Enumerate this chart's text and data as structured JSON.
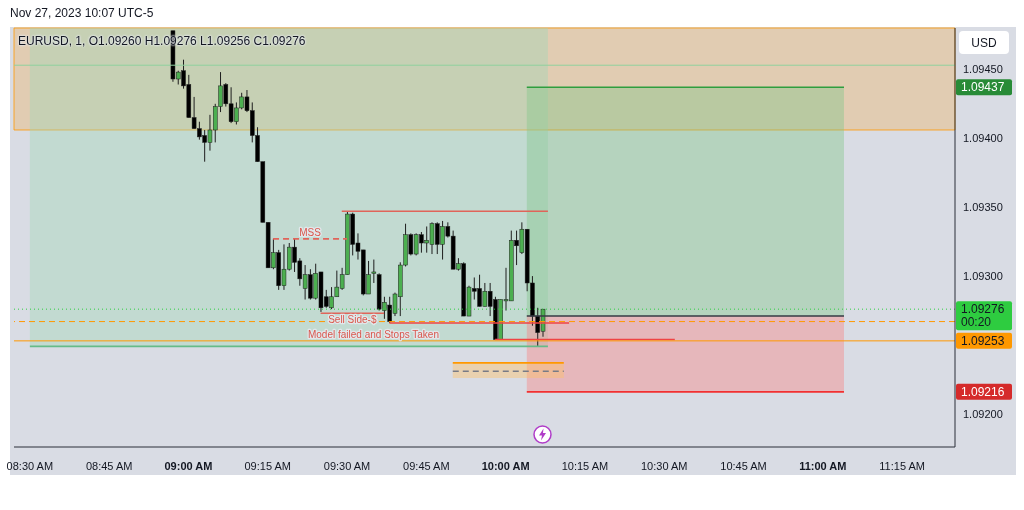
{
  "chart_data": {
    "type": "candlestick",
    "title": "EURUSD, 1, O1.09260 H1.09276 L1.09256 C1.09276",
    "ylabel": "USD",
    "x": [
      "2023-11-27T08:57",
      "2023-11-27T08:58",
      "2023-11-27T08:59",
      "2023-11-27T09:00",
      "2023-11-27T09:01",
      "2023-11-27T09:02",
      "2023-11-27T09:03",
      "2023-11-27T09:04",
      "2023-11-27T09:05",
      "2023-11-27T09:06",
      "2023-11-27T09:07",
      "2023-11-27T09:08",
      "2023-11-27T09:09",
      "2023-11-27T09:10",
      "2023-11-27T09:11",
      "2023-11-27T09:12",
      "2023-11-27T09:13",
      "2023-11-27T09:14",
      "2023-11-27T09:15",
      "2023-11-27T09:16",
      "2023-11-27T09:17",
      "2023-11-27T09:18",
      "2023-11-27T09:19",
      "2023-11-27T09:20",
      "2023-11-27T09:21",
      "2023-11-27T09:22",
      "2023-11-27T09:23",
      "2023-11-27T09:24",
      "2023-11-27T09:25",
      "2023-11-27T09:26",
      "2023-11-27T09:27",
      "2023-11-27T09:28",
      "2023-11-27T09:29",
      "2023-11-27T09:30",
      "2023-11-27T09:31",
      "2023-11-27T09:32",
      "2023-11-27T09:33",
      "2023-11-27T09:34",
      "2023-11-27T09:35",
      "2023-11-27T09:36",
      "2023-11-27T09:37",
      "2023-11-27T09:38",
      "2023-11-27T09:39",
      "2023-11-27T09:40",
      "2023-11-27T09:41",
      "2023-11-27T09:42",
      "2023-11-27T09:43",
      "2023-11-27T09:44",
      "2023-11-27T09:45",
      "2023-11-27T09:46",
      "2023-11-27T09:47",
      "2023-11-27T09:48",
      "2023-11-27T09:49",
      "2023-11-27T09:50",
      "2023-11-27T09:51",
      "2023-11-27T09:52",
      "2023-11-27T09:53",
      "2023-11-27T09:54",
      "2023-11-27T09:55",
      "2023-11-27T09:56",
      "2023-11-27T09:57",
      "2023-11-27T09:58",
      "2023-11-27T09:59",
      "2023-11-27T10:00",
      "2023-11-27T10:01",
      "2023-11-27T10:02",
      "2023-11-27T10:03",
      "2023-11-27T10:04",
      "2023-11-27T10:05",
      "2023-11-27T10:06",
      "2023-11-27T10:07"
    ],
    "ohlc": [
      [
        1.09478,
        1.09478,
        1.09441,
        1.09443
      ],
      [
        1.09443,
        1.09449,
        1.09439,
        1.09448
      ],
      [
        1.09449,
        1.09457,
        1.09436,
        1.09438
      ],
      [
        1.09439,
        1.09446,
        1.09415,
        1.09415
      ],
      [
        1.09415,
        1.0943,
        1.09407,
        1.09407
      ],
      [
        1.09407,
        1.09412,
        1.09399,
        1.09401
      ],
      [
        1.09402,
        1.09406,
        1.09383,
        1.09397
      ],
      [
        1.09397,
        1.09417,
        1.09391,
        1.09406
      ],
      [
        1.09406,
        1.09425,
        1.09397,
        1.09423
      ],
      [
        1.09423,
        1.09448,
        1.09419,
        1.09438
      ],
      [
        1.09439,
        1.0944,
        1.09423,
        1.09425
      ],
      [
        1.09425,
        1.09437,
        1.09411,
        1.09412
      ],
      [
        1.09412,
        1.09426,
        1.0941,
        1.09422
      ],
      [
        1.09422,
        1.09433,
        1.09421,
        1.0943
      ],
      [
        1.0943,
        1.09435,
        1.09419,
        1.0942
      ],
      [
        1.0942,
        1.09426,
        1.09397,
        1.09402
      ],
      [
        1.09402,
        1.09408,
        1.09383,
        1.09383
      ],
      [
        1.09383,
        1.09383,
        1.09339,
        1.09339
      ],
      [
        1.09339,
        1.09339,
        1.09306,
        1.09306
      ],
      [
        1.09306,
        1.09327,
        1.09305,
        1.09317
      ],
      [
        1.09317,
        1.09319,
        1.0929,
        1.09293
      ],
      [
        1.09293,
        1.09323,
        1.0929,
        1.09305
      ],
      [
        1.09305,
        1.09324,
        1.09304,
        1.09321
      ],
      [
        1.09321,
        1.09327,
        1.09303,
        1.0931
      ],
      [
        1.09311,
        1.09313,
        1.09293,
        1.09298
      ],
      [
        1.09291,
        1.09308,
        1.09283,
        1.09301
      ],
      [
        1.09301,
        1.09305,
        1.09283,
        1.09284
      ],
      [
        1.09284,
        1.09309,
        1.09283,
        1.09302
      ],
      [
        1.09303,
        1.09303,
        1.09274,
        1.09277
      ],
      [
        1.09285,
        1.0929,
        1.09277,
        1.09278
      ],
      [
        1.09277,
        1.09292,
        1.09276,
        1.09285
      ],
      [
        1.09285,
        1.09304,
        1.09285,
        1.09292
      ],
      [
        1.09291,
        1.09306,
        1.0929,
        1.09301
      ],
      [
        1.09301,
        1.09347,
        1.09301,
        1.09345
      ],
      [
        1.09345,
        1.09346,
        1.09315,
        1.09323
      ],
      [
        1.09324,
        1.09331,
        1.09312,
        1.09318
      ],
      [
        1.09319,
        1.09319,
        1.09286,
        1.09287
      ],
      [
        1.09287,
        1.09311,
        1.09287,
        1.09301
      ],
      [
        1.09302,
        1.09312,
        1.09295,
        1.09303
      ],
      [
        1.09301,
        1.09302,
        1.09275,
        1.09276
      ],
      [
        1.09275,
        1.09285,
        1.09269,
        1.09281
      ],
      [
        1.09279,
        1.09285,
        1.09266,
        1.09267
      ],
      [
        1.09273,
        1.09288,
        1.09271,
        1.09287
      ],
      [
        1.09285,
        1.0931,
        1.09271,
        1.09308
      ],
      [
        1.09308,
        1.09338,
        1.09307,
        1.0933
      ],
      [
        1.0933,
        1.09331,
        1.09315,
        1.09316
      ],
      [
        1.09316,
        1.09331,
        1.09315,
        1.0933
      ],
      [
        1.0933,
        1.09332,
        1.09317,
        1.09324
      ],
      [
        1.09324,
        1.09336,
        1.09317,
        1.09326
      ],
      [
        1.09323,
        1.09339,
        1.09316,
        1.09338
      ],
      [
        1.09338,
        1.09339,
        1.09316,
        1.09323
      ],
      [
        1.09323,
        1.0934,
        1.09312,
        1.09336
      ],
      [
        1.09336,
        1.09339,
        1.09328,
        1.09329
      ],
      [
        1.09329,
        1.09333,
        1.09305,
        1.09305
      ],
      [
        1.09305,
        1.09313,
        1.09304,
        1.09309
      ],
      [
        1.09309,
        1.0931,
        1.09271,
        1.09271
      ],
      [
        1.09271,
        1.09293,
        1.09271,
        1.09292
      ],
      [
        1.09291,
        1.09299,
        1.09283,
        1.09289
      ],
      [
        1.09291,
        1.09301,
        1.09278,
        1.09278
      ],
      [
        1.09278,
        1.09295,
        1.09278,
        1.09289
      ],
      [
        1.09289,
        1.09295,
        1.09271,
        1.09278
      ],
      [
        1.09283,
        1.09285,
        1.09254,
        1.09254
      ],
      [
        1.09254,
        1.09283,
        1.09254,
        1.09283
      ],
      [
        1.09282,
        1.09306,
        1.09275,
        1.09283
      ],
      [
        1.09282,
        1.09333,
        1.09282,
        1.09326
      ],
      [
        1.09326,
        1.09333,
        1.09308,
        1.09322
      ],
      [
        1.09317,
        1.09339,
        1.09316,
        1.09334
      ],
      [
        1.09334,
        1.09334,
        1.09289,
        1.09295
      ],
      [
        1.09295,
        1.093,
        1.09264,
        1.09271
      ],
      [
        1.09271,
        1.09277,
        1.09249,
        1.09259
      ],
      [
        1.0926,
        1.09276,
        1.09256,
        1.09276
      ]
    ],
    "colors": [
      "#000000",
      "#4caf50",
      "#000000",
      "#000000",
      "#000000",
      "#000000",
      "#000000",
      "#4caf50",
      "#4caf50",
      "#4caf50",
      "#000000",
      "#000000",
      "#4caf50",
      "#4caf50",
      "#000000",
      "#000000",
      "#000000",
      "#000000",
      "#000000",
      "#4caf50",
      "#000000",
      "#4caf50",
      "#4caf50",
      "#000000",
      "#000000",
      "#4caf50",
      "#000000",
      "#4caf50",
      "#000000",
      "#000000",
      "#4caf50",
      "#4caf50",
      "#4caf50",
      "#4caf50",
      "#000000",
      "#000000",
      "#000000",
      "#4caf50",
      "#4caf50",
      "#000000",
      "#4caf50",
      "#000000",
      "#4caf50",
      "#4caf50",
      "#4caf50",
      "#000000",
      "#4caf50",
      "#000000",
      "#4caf50",
      "#4caf50",
      "#000000",
      "#4caf50",
      "#000000",
      "#000000",
      "#4caf50",
      "#000000",
      "#4caf50",
      "#000000",
      "#000000",
      "#4caf50",
      "#000000",
      "#000000",
      "#4caf50",
      "#4caf50",
      "#4caf50",
      "#000000",
      "#4caf50",
      "#000000",
      "#000000",
      "#000000",
      "#4caf50"
    ],
    "series": [
      {
        "type": "line",
        "x": [
          "2023-11-27T08:30",
          "2023-11-27T10:08"
        ],
        "values": [
          1.09249,
          1.09249
        ],
        "lower": [
          1.09249,
          1.09249
        ],
        "upper": [
          1.0948,
          1.0948
        ],
        "color": "#66bb88"
      },
      {
        "type": "line",
        "x": [
          "2023-11-27T10:04",
          "2023-11-27T11:04"
        ],
        "values": [
          1.09437,
          1.09437
        ],
        "lower": [
          1.09271,
          1.09271
        ],
        "upper": [
          1.09437,
          1.09437
        ],
        "color": "#2e9e3e"
      },
      {
        "type": "line",
        "x": [
          "2023-11-27T10:04",
          "2023-11-27T11:04"
        ],
        "values": [
          1.09216,
          1.09216
        ],
        "lower": [
          1.09216,
          1.09216
        ],
        "upper": [
          1.09271,
          1.09271
        ],
        "color": "#f23030"
      },
      {
        "type": "line",
        "x": [
          "2023-11-27T09:50",
          "2023-11-27T10:11"
        ],
        "values": [
          1.09237,
          1.09237
        ],
        "lower": [
          1.09226,
          1.09226
        ],
        "upper": [
          1.09237,
          1.09237
        ],
        "color": "#ff9800"
      },
      {
        "type": "line",
        "x": [
          "2023-11-27T10:04",
          "2023-11-27T11:04"
        ],
        "values": [
          1.09271,
          1.09271
        ],
        "color": "#363a45"
      },
      {
        "type": "line",
        "x": [
          "2023-11-27T09:50",
          "2023-11-27T10:11"
        ],
        "values": [
          1.09231,
          1.09231
        ],
        "color": "#787b86",
        "line_style": "dashed"
      },
      {
        "type": "line",
        "x": [
          "2023-11-27T09:29",
          "2023-11-27T10:08"
        ],
        "values": [
          1.09347,
          1.09347
        ],
        "color": "#e0645a"
      },
      {
        "type": "line",
        "x": [
          "2023-11-27T09:16",
          "2023-11-27T09:30"
        ],
        "values": [
          1.09327,
          1.09327
        ],
        "color": "#e0645a",
        "line_style": "dashed"
      },
      {
        "type": "line",
        "x": [
          "2023-11-27T09:25",
          "2023-11-27T09:37"
        ],
        "values": [
          1.09273,
          1.09273
        ],
        "color": "#e0645a"
      },
      {
        "type": "line",
        "x": [
          "2023-11-27T09:38",
          "2023-11-27T10:12"
        ],
        "values": [
          1.09266,
          1.09266
        ],
        "color": "#ef4444"
      },
      {
        "type": "line",
        "x": [
          "2023-11-27T09:58",
          "2023-11-27T10:32"
        ],
        "values": [
          1.09254,
          1.09254
        ],
        "color": "#ef4444"
      }
    ],
    "ref_lines": [
      {
        "axis": "y",
        "value": 1.09453,
        "color": "#8fd19e"
      },
      {
        "axis": "y",
        "value": 1.09276,
        "label": "1.09276\n00:20",
        "color": "#2ecc40",
        "line_style": "dotted"
      },
      {
        "axis": "y",
        "value": 1.09267,
        "color": "#ff9800",
        "line_style": "dashed"
      },
      {
        "axis": "y",
        "value": 1.09253,
        "label": "1.09253",
        "color": "#ff9800"
      }
    ],
    "bands": [
      {
        "axis": "y",
        "from": 1.09406,
        "to": 1.0948,
        "color": "#ff9800"
      }
    ],
    "annotations": [
      "Nov 27, 2023 10:07 UTC-5",
      {
        "text": "MSS",
        "x": "2023-11-27T09:23",
        "y": 1.09327
      },
      {
        "text": "Sell Side-$",
        "x": "2023-11-27T09:31",
        "y": 1.09273
      },
      {
        "text": "Model failed and Stops Taken",
        "x": "2023-11-27T09:35",
        "y": 1.09253
      }
    ],
    "xlim": [
      "2023-11-27T08:27",
      "2023-11-27T11:25"
    ],
    "xticks": [
      {
        "value": "2023-11-27T08:30",
        "label": "08:30 AM"
      },
      {
        "value": "2023-11-27T08:45",
        "label": "08:45 AM"
      },
      {
        "value": "2023-11-27T09:00",
        "label": "09:00 AM"
      },
      {
        "value": "2023-11-27T09:15",
        "label": "09:15 AM"
      },
      {
        "value": "2023-11-27T09:30",
        "label": "09:30 AM"
      },
      {
        "value": "2023-11-27T09:45",
        "label": "09:45 AM"
      },
      {
        "value": "2023-11-27T10:00",
        "label": "10:00 AM"
      },
      {
        "value": "2023-11-27T10:15",
        "label": "10:15 AM"
      },
      {
        "value": "2023-11-27T10:30",
        "label": "10:30 AM"
      },
      {
        "value": "2023-11-27T10:45",
        "label": "10:45 AM"
      },
      {
        "value": "2023-11-27T11:00",
        "label": "11:00 AM"
      },
      {
        "value": "2023-11-27T11:15",
        "label": "11:15 AM"
      }
    ],
    "ylim": [
      1.09176,
      1.0948
    ],
    "yticks": [
      {
        "value": 1.092,
        "label": "1.09200"
      },
      1.09216,
      {
        "value": 1.093,
        "label": "1.09300"
      },
      {
        "value": 1.0935,
        "label": "1.09350"
      },
      {
        "value": 1.094,
        "label": "1.09400"
      },
      1.09437,
      {
        "value": 1.0945,
        "label": "1.09450"
      }
    ]
  }
}
